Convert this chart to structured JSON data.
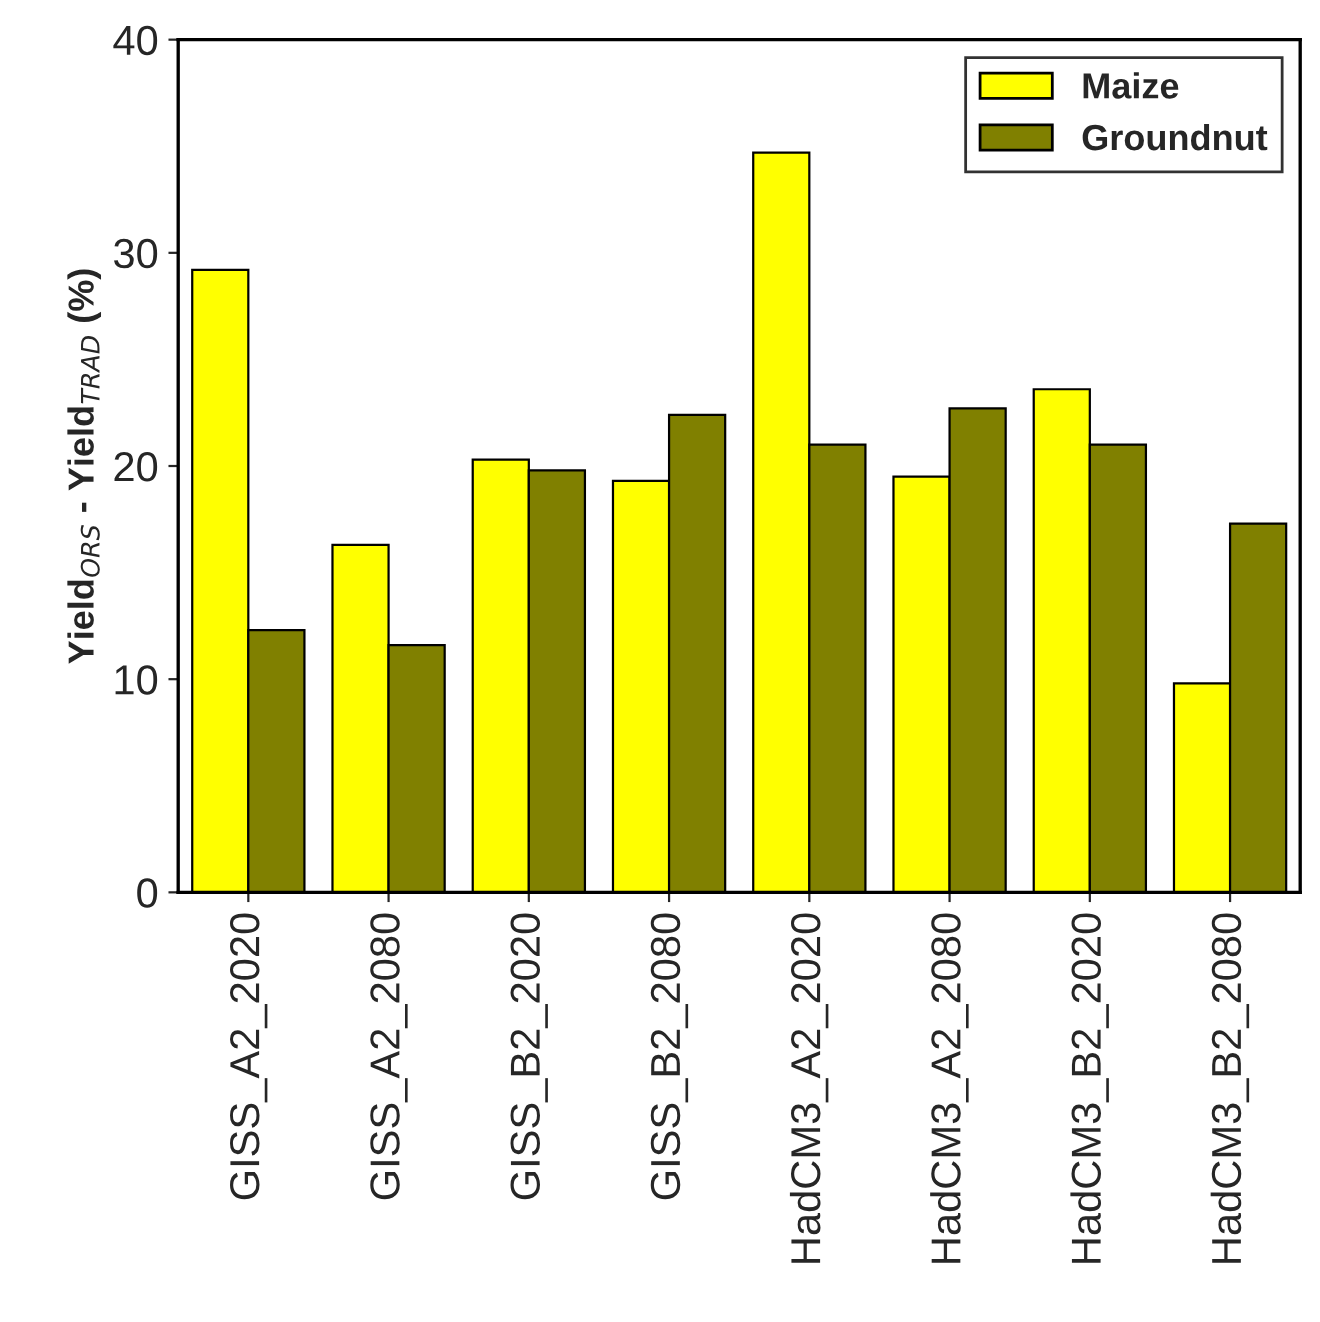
{
  "chart_data": {
    "type": "bar",
    "ylabel": "Yield$_{ORS}$ - Yield$_{TRAD}$ (%)",
    "categories": [
      "GISS_A2_2020",
      "GISS_A2_2080",
      "GISS_B2_2020",
      "GISS_B2_2080",
      "HadCM3_A2_2020",
      "HadCM3_A2_2080",
      "HadCM3_B2_2020",
      "HadCM3_B2_2080"
    ],
    "series": [
      {
        "name": "Maize",
        "color": "#ffff00",
        "values": [
          29.2,
          16.3,
          20.3,
          19.3,
          34.7,
          19.5,
          23.6,
          9.8
        ]
      },
      {
        "name": "Groundnut",
        "color": "#808000",
        "values": [
          12.3,
          11.6,
          19.8,
          22.4,
          21.0,
          22.7,
          21.0,
          17.3
        ]
      }
    ],
    "ylim": [
      0,
      40
    ],
    "yticks": [
      0,
      10,
      20,
      30,
      40
    ],
    "grid": false,
    "legend": "top right"
  }
}
